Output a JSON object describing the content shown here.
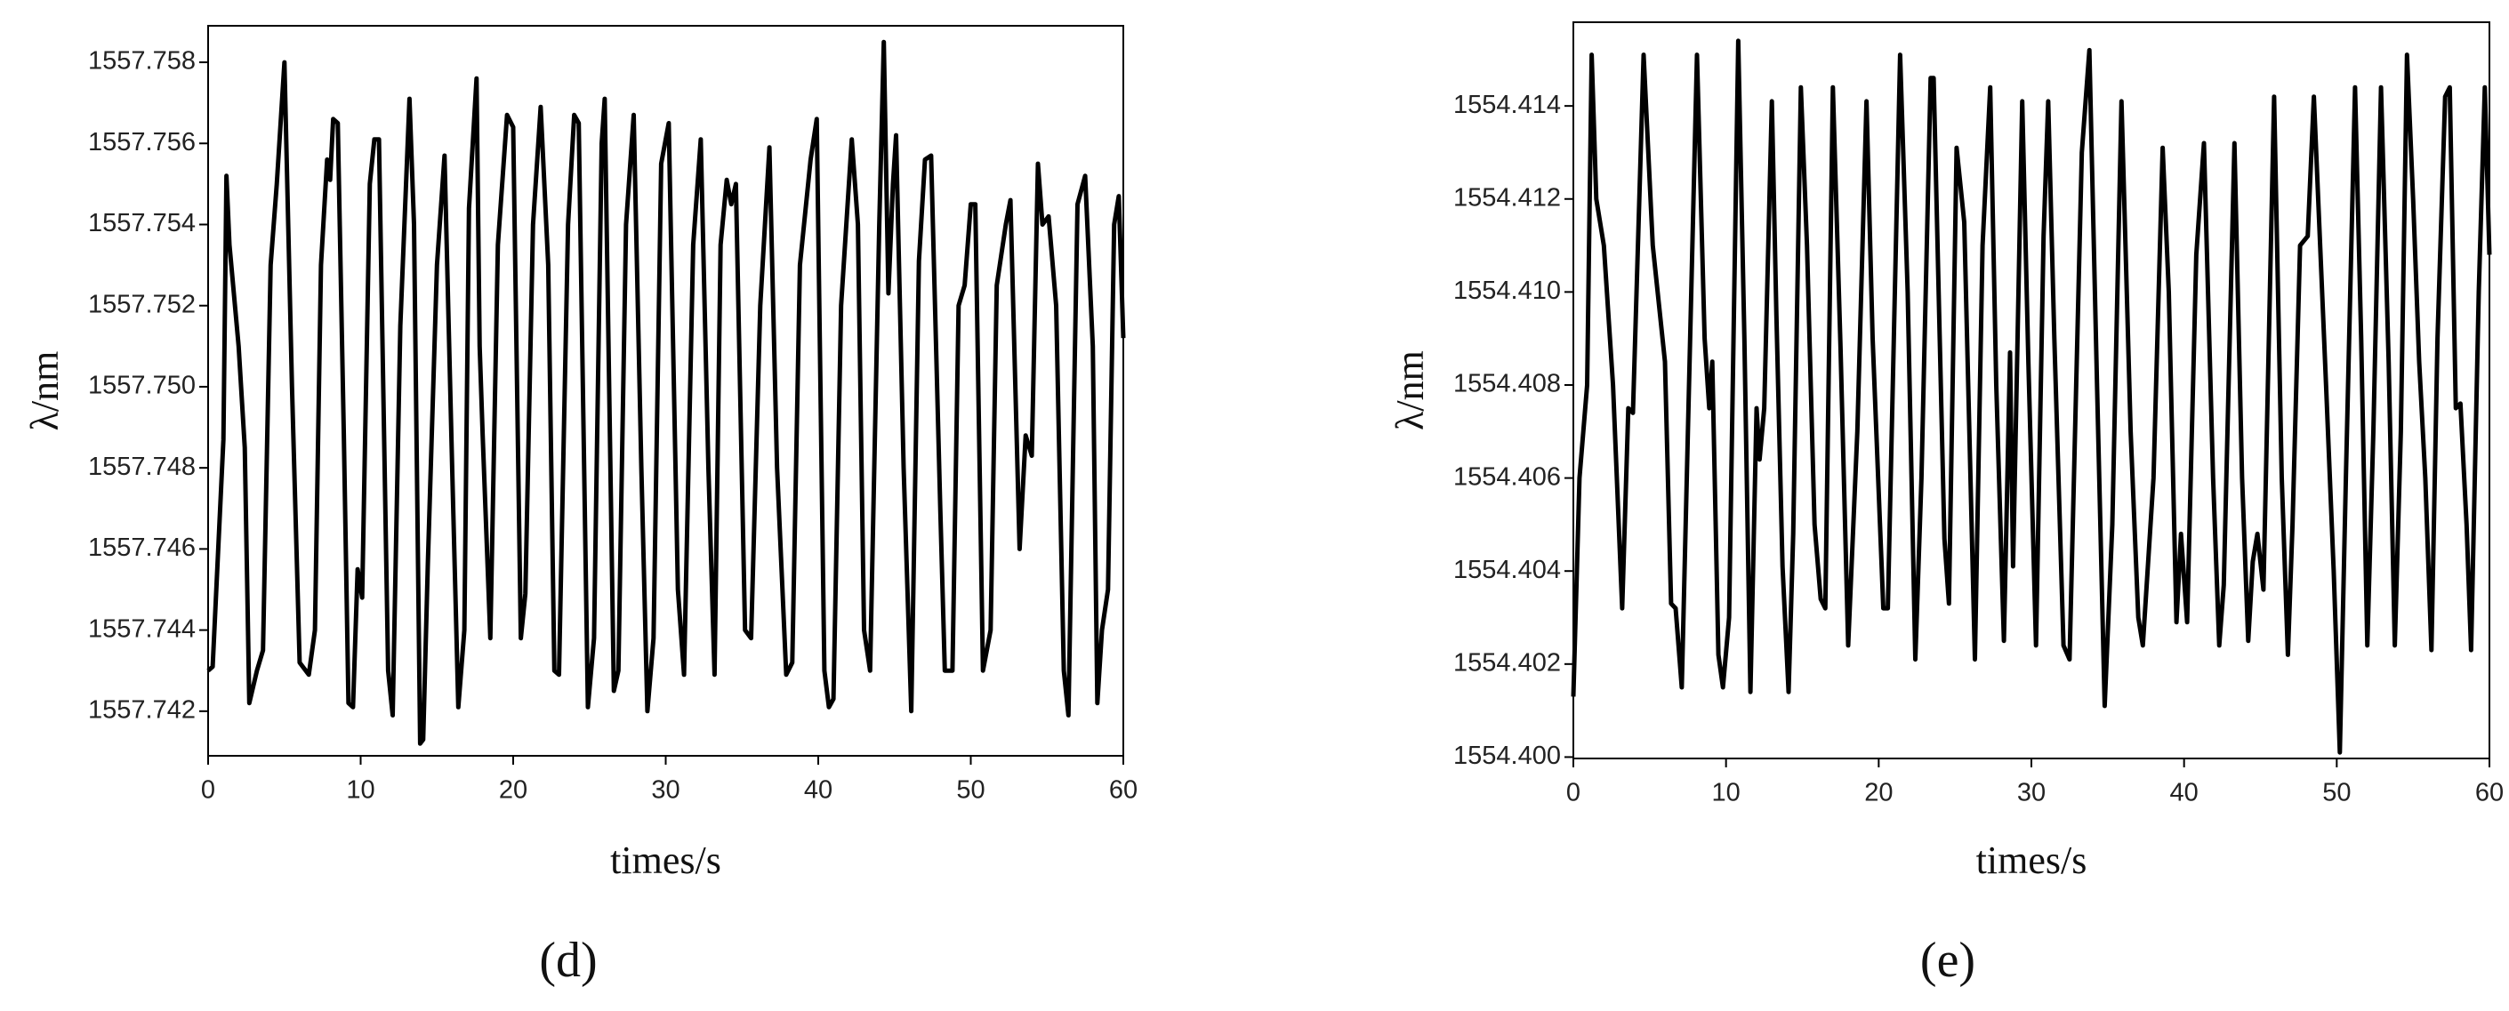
{
  "chart_data": [
    {
      "type": "line",
      "label": "(d)",
      "xlabel": "times/s",
      "ylabel": "λ/nm",
      "color": "#000000",
      "xlim": [
        0,
        60
      ],
      "xticks": [
        0,
        10,
        20,
        30,
        40,
        50,
        60
      ],
      "ylim": [
        1557.7409,
        1557.7589
      ],
      "yticks": [
        1557.742,
        1557.744,
        1557.746,
        1557.748,
        {
          "value": 1557.75,
          "label": "1557.750"
        },
        1557.752,
        1557.754,
        1557.756,
        1557.758
      ],
      "x": [
        0,
        0.3,
        1.0,
        1.2,
        1.4,
        2.0,
        2.4,
        2.7,
        3.2,
        3.6,
        4.1,
        4.5,
        5.0,
        5.5,
        6.0,
        6.6,
        7.0,
        7.4,
        7.8,
        8.0,
        8.2,
        8.5,
        8.9,
        9.2,
        9.5,
        9.8,
        10.1,
        10.6,
        10.9,
        11.2,
        11.8,
        12.1,
        12.6,
        13.2,
        13.5,
        13.9,
        14.1,
        14.4,
        15.0,
        15.5,
        16.0,
        16.4,
        16.8,
        17.1,
        17.6,
        17.8,
        18.0,
        18.5,
        19.0,
        19.6,
        20.0,
        20.5,
        20.8,
        21.3,
        21.8,
        22.3,
        22.7,
        23.0,
        23.6,
        24.0,
        24.3,
        24.9,
        25.3,
        25.8,
        26.0,
        26.6,
        26.9,
        27.4,
        27.9,
        28.4,
        28.8,
        29.2,
        29.7,
        30.2,
        30.8,
        31.2,
        31.8,
        32.3,
        32.8,
        33.2,
        33.6,
        34.0,
        34.3,
        34.6,
        35.2,
        35.6,
        36.2,
        36.8,
        37.3,
        37.9,
        38.3,
        38.8,
        39.5,
        39.9,
        40.4,
        40.7,
        41.0,
        41.5,
        42.2,
        42.6,
        43.0,
        43.4,
        44.0,
        44.3,
        44.6,
        44.9,
        45.1,
        45.6,
        46.1,
        46.6,
        47.0,
        47.4,
        48.0,
        48.3,
        48.8,
        49.2,
        49.6,
        50.0,
        50.3,
        50.8,
        51.3,
        51.7,
        52.3,
        52.6,
        53.2,
        53.6,
        54.0,
        54.4,
        54.7,
        55.1,
        55.6,
        56.1,
        56.4,
        57.0,
        57.5,
        58.0,
        58.3,
        58.6,
        59.0,
        59.4,
        59.7,
        60
      ],
      "values": [
        1557.743,
        1557.7431,
        1557.7487,
        1557.7552,
        1557.7535,
        1557.751,
        1557.7485,
        1557.7422,
        1557.743,
        1557.7435,
        1557.753,
        1557.755,
        1557.758,
        1557.75,
        1557.7432,
        1557.7429,
        1557.744,
        1557.753,
        1557.7556,
        1557.7551,
        1557.7566,
        1557.7565,
        1557.7488,
        1557.7422,
        1557.7421,
        1557.7455,
        1557.7448,
        1557.755,
        1557.7561,
        1557.7561,
        1557.743,
        1557.7419,
        1557.7515,
        1557.7571,
        1557.754,
        1557.7412,
        1557.7413,
        1557.7456,
        1557.753,
        1557.7557,
        1557.748,
        1557.7421,
        1557.744,
        1557.7544,
        1557.7576,
        1557.751,
        1557.7488,
        1557.7438,
        1557.7535,
        1557.7567,
        1557.7564,
        1557.7438,
        1557.7449,
        1557.754,
        1557.7569,
        1557.753,
        1557.743,
        1557.7429,
        1557.754,
        1557.7567,
        1557.7565,
        1557.7421,
        1557.7438,
        1557.756,
        1557.7571,
        1557.7425,
        1557.743,
        1557.754,
        1557.7567,
        1557.748,
        1557.742,
        1557.7438,
        1557.7555,
        1557.7565,
        1557.745,
        1557.7429,
        1557.7535,
        1557.7561,
        1557.748,
        1557.7429,
        1557.7535,
        1557.7551,
        1557.7545,
        1557.755,
        1557.744,
        1557.7438,
        1557.752,
        1557.7559,
        1557.748,
        1557.7429,
        1557.7432,
        1557.753,
        1557.7556,
        1557.7566,
        1557.743,
        1557.7421,
        1557.7423,
        1557.752,
        1557.7561,
        1557.754,
        1557.744,
        1557.743,
        1557.754,
        1557.7585,
        1557.7523,
        1557.755,
        1557.7562,
        1557.748,
        1557.742,
        1557.7531,
        1557.7556,
        1557.7557,
        1557.747,
        1557.743,
        1557.743,
        1557.752,
        1557.7525,
        1557.7545,
        1557.7545,
        1557.743,
        1557.744,
        1557.7525,
        1557.754,
        1557.7546,
        1557.746,
        1557.7488,
        1557.7483,
        1557.7555,
        1557.754,
        1557.7542,
        1557.752,
        1557.743,
        1557.7419,
        1557.7545,
        1557.7552,
        1557.751,
        1557.7422,
        1557.744,
        1557.745,
        1557.754,
        1557.7547,
        1557.7512
      ]
    },
    {
      "type": "line",
      "label": "(e)",
      "xlabel": "times/s",
      "ylabel": "λ/nm",
      "color": "#000000",
      "xlim": [
        0,
        60
      ],
      "xticks": [
        0,
        10,
        20,
        30,
        40,
        50,
        60
      ],
      "ylim": [
        1554.39997,
        1554.4158
      ],
      "yticks": [
        {
          "value": 1554.4,
          "label": "1554.400"
        },
        1554.402,
        1554.404,
        1554.406,
        1554.408,
        {
          "value": 1554.41,
          "label": "1554.410"
        },
        1554.412,
        1554.414
      ],
      "x": [
        0,
        0.4,
        0.9,
        1.2,
        1.5,
        2.0,
        2.6,
        3.2,
        3.6,
        3.9,
        4.6,
        5.2,
        6.0,
        6.4,
        6.7,
        7.1,
        7.5,
        8.1,
        8.6,
        8.9,
        9.1,
        9.5,
        9.8,
        10.2,
        10.8,
        11.2,
        11.6,
        12.0,
        12.2,
        12.5,
        13.0,
        13.3,
        13.7,
        14.1,
        14.4,
        14.9,
        15.3,
        15.8,
        16.2,
        16.5,
        17.0,
        17.5,
        18.0,
        18.6,
        19.2,
        19.6,
        20.3,
        20.6,
        21.4,
        21.9,
        22.4,
        22.8,
        23.4,
        23.6,
        24.3,
        24.6,
        25.1,
        25.6,
        26.3,
        26.8,
        27.3,
        27.7,
        28.2,
        28.6,
        28.8,
        29.4,
        29.8,
        30.3,
        30.8,
        31.1,
        31.5,
        32.1,
        32.5,
        33.3,
        33.8,
        34.3,
        34.8,
        35.3,
        35.9,
        36.5,
        37.0,
        37.3,
        38.0,
        38.6,
        39.0,
        39.5,
        39.8,
        40.2,
        40.8,
        41.3,
        41.9,
        42.3,
        42.6,
        43.3,
        43.8,
        44.2,
        44.5,
        44.8,
        45.2,
        45.9,
        46.4,
        46.8,
        47.1,
        47.6,
        48.1,
        48.5,
        49.3,
        49.8,
        50.2,
        50.6,
        51.2,
        51.6,
        52.0,
        52.4,
        52.9,
        53.4,
        53.8,
        54.2,
        54.6,
        55.0,
        55.4,
        55.8,
        56.2,
        56.6,
        57.1,
        57.4,
        57.8,
        58.1,
        58.5,
        58.8,
        59.3,
        59.7,
        60
      ],
      "values": [
        1554.4013,
        1554.406,
        1554.408,
        1554.4151,
        1554.412,
        1554.411,
        1554.408,
        1554.4032,
        1554.4075,
        1554.4074,
        1554.4151,
        1554.411,
        1554.4085,
        1554.4033,
        1554.4032,
        1554.4015,
        1554.407,
        1554.4151,
        1554.409,
        1554.4075,
        1554.4085,
        1554.4022,
        1554.4015,
        1554.403,
        1554.4154,
        1554.409,
        1554.4014,
        1554.4075,
        1554.4064,
        1554.4075,
        1554.4141,
        1554.4095,
        1554.4041,
        1554.4014,
        1554.4048,
        1554.4144,
        1554.411,
        1554.405,
        1554.4034,
        1554.4032,
        1554.4144,
        1554.4088,
        1554.4024,
        1554.407,
        1554.4141,
        1554.409,
        1554.4032,
        1554.4032,
        1554.4151,
        1554.41,
        1554.4021,
        1554.406,
        1554.4146,
        1554.4146,
        1554.4047,
        1554.4033,
        1554.4131,
        1554.4115,
        1554.4021,
        1554.411,
        1554.4144,
        1554.408,
        1554.4025,
        1554.4087,
        1554.4041,
        1554.4141,
        1554.4085,
        1554.4024,
        1554.4112,
        1554.4141,
        1554.409,
        1554.4024,
        1554.4021,
        1554.413,
        1554.4152,
        1554.408,
        1554.4011,
        1554.405,
        1554.4141,
        1554.407,
        1554.403,
        1554.4024,
        1554.406,
        1554.4131,
        1554.41,
        1554.4029,
        1554.4048,
        1554.4029,
        1554.4108,
        1554.4132,
        1554.406,
        1554.4024,
        1554.4037,
        1554.4132,
        1554.406,
        1554.4025,
        1554.4042,
        1554.4048,
        1554.4036,
        1554.4142,
        1554.406,
        1554.4022,
        1554.405,
        1554.411,
        1554.4112,
        1554.4142,
        1554.408,
        1554.404,
        1554.4001,
        1554.406,
        1554.4144,
        1554.409,
        1554.4024,
        1554.407,
        1554.4144,
        1554.4085,
        1554.4024,
        1554.407,
        1554.4151,
        1554.412,
        1554.4085,
        1554.406,
        1554.4023,
        1554.409,
        1554.4142,
        1554.4144,
        1554.4075,
        1554.4076,
        1554.405,
        1554.4023,
        1554.41,
        1554.4144,
        1554.4108
      ]
    }
  ]
}
